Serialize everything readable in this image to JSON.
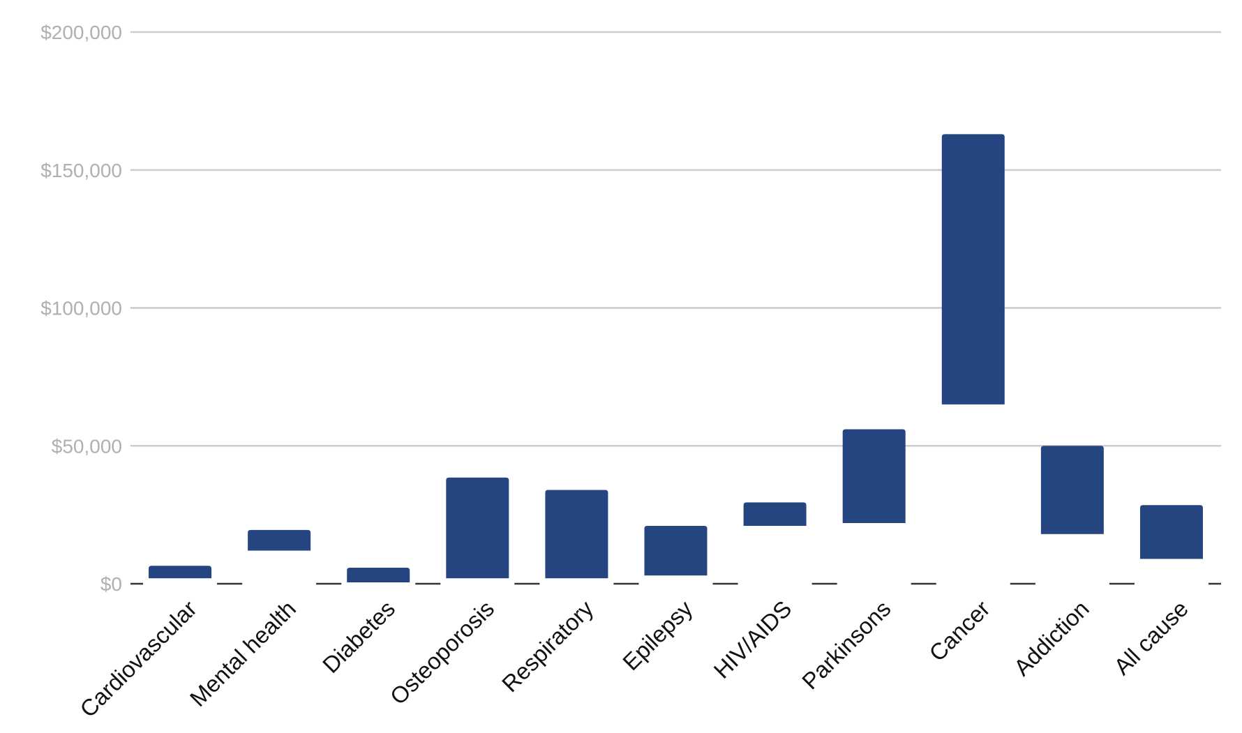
{
  "colors": {
    "bar": "#244580",
    "grid": "#cccccc",
    "baseline": "#333333",
    "y_tick_text": "#b0b0b0",
    "x_tick_text": "#111111",
    "background": "#ffffff"
  },
  "chart_data": {
    "type": "bar",
    "subtype": "floating-range",
    "categories": [
      "Cardiovascular",
      "Mental health",
      "Diabetes",
      "Osteoporosis",
      "Respiratory",
      "Epilepsy",
      "HIV/AIDS",
      "Parkinsons",
      "Cancer",
      "Addiction",
      "All cause"
    ],
    "series": [
      {
        "low": [
          2000,
          12000,
          500,
          2000,
          2000,
          3000,
          21000,
          22000,
          65000,
          18000,
          9000
        ],
        "high": [
          6500,
          19500,
          5800,
          38500,
          34000,
          21000,
          29500,
          56000,
          163000,
          50000,
          28500
        ]
      }
    ],
    "yticks": [
      "$0",
      "$50,000",
      "$100,000",
      "$150,000",
      "$200,000"
    ],
    "ytick_values": [
      0,
      50000,
      100000,
      150000,
      200000
    ],
    "ylim": [
      0,
      200000
    ],
    "grid": true,
    "legend": "none"
  }
}
